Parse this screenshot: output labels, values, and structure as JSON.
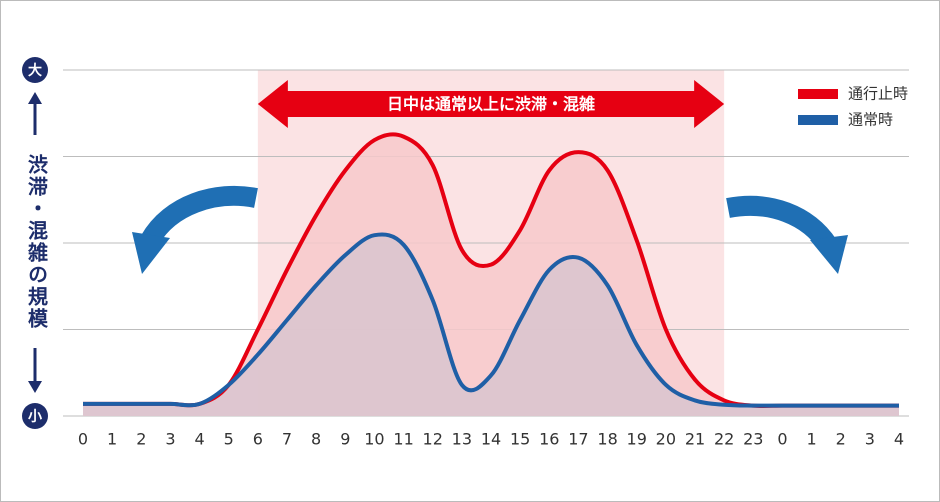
{
  "chart_data": {
    "type": "area",
    "banner": "日中は通常以上に渋滞・混雑",
    "y_label": "渋滞・混雑の規模",
    "categories": [
      "0",
      "1",
      "2",
      "3",
      "4",
      "5",
      "6",
      "7",
      "8",
      "9",
      "10",
      "11",
      "12",
      "13",
      "14",
      "15",
      "16",
      "17",
      "18",
      "19",
      "20",
      "21",
      "22",
      "23",
      "0",
      "1",
      "2",
      "3",
      "4"
    ],
    "series": [
      {
        "name": "通行止時",
        "color": "#e60012",
        "fill": "#f7c9cb",
        "values": [
          0.14,
          0.14,
          0.14,
          0.14,
          0.14,
          0.36,
          1.0,
          1.69,
          2.32,
          2.84,
          3.19,
          3.23,
          2.9,
          1.92,
          1.75,
          2.15,
          2.84,
          3.05,
          2.84,
          2.03,
          1.0,
          0.42,
          0.18,
          0.12,
          0.12,
          0.12,
          0.12,
          0.12,
          0.12
        ]
      },
      {
        "name": "通常時",
        "color": "#1f5fa6",
        "fill": "#d9c4cf",
        "values": [
          0.14,
          0.14,
          0.14,
          0.14,
          0.14,
          0.36,
          0.71,
          1.11,
          1.51,
          1.86,
          2.09,
          1.98,
          1.34,
          0.36,
          0.47,
          1.11,
          1.69,
          1.83,
          1.51,
          0.82,
          0.36,
          0.18,
          0.13,
          0.12,
          0.12,
          0.12,
          0.12,
          0.12,
          0.12
        ]
      }
    ],
    "ylim": [
      0,
      4
    ],
    "yticks": [
      {
        "value": 0,
        "label": "小"
      },
      {
        "value": 4,
        "label": "大"
      }
    ],
    "gridlines": [
      0,
      1,
      2,
      3,
      4
    ],
    "highlight_range": [
      6,
      22
    ],
    "highlight_color": "#fbe3e4",
    "legend": "top-right"
  }
}
